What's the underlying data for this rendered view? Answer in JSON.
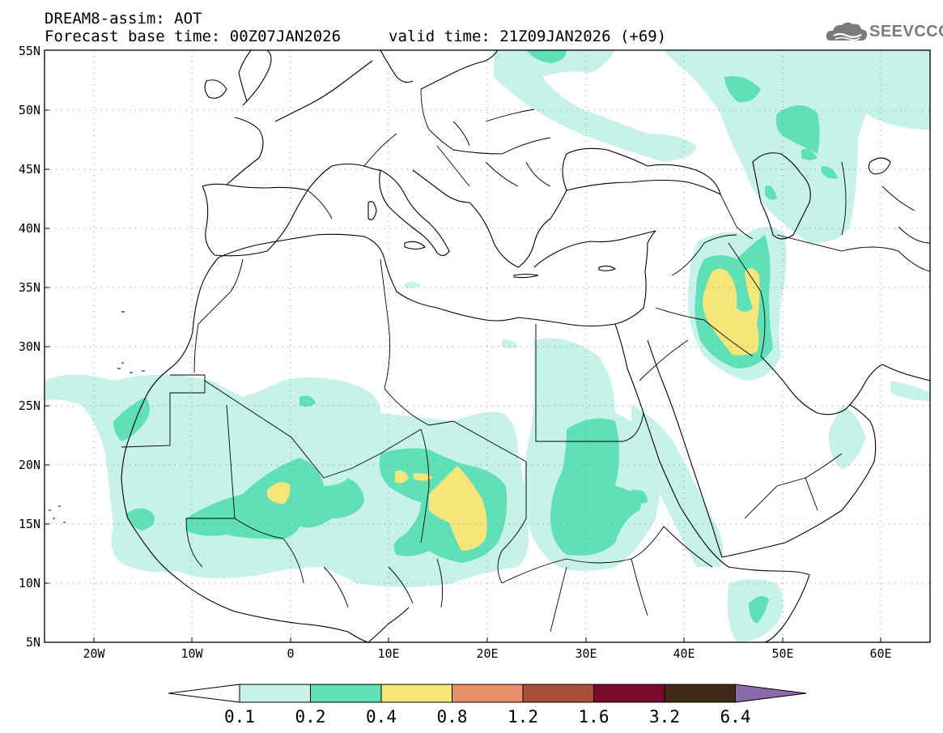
{
  "header": {
    "line1": "DREAM8-assim: AOT",
    "line2": "Forecast base time: 00Z07JAN2026",
    "valid": "valid time: 21Z09JAN2026 (+69)"
  },
  "logo": {
    "text": "SEEVCCC",
    "icon": "cloud-icon",
    "color": "#7a7a7a"
  },
  "map": {
    "lon_range": [
      -25,
      65
    ],
    "lat_range": [
      5,
      55
    ],
    "lon_ticks": [
      "20W",
      "10W",
      "0",
      "10E",
      "20E",
      "30E",
      "40E",
      "50E",
      "60E"
    ],
    "lat_ticks": [
      "5N",
      "10N",
      "15N",
      "20N",
      "25N",
      "30N",
      "35N",
      "40N",
      "45N",
      "50N",
      "55N"
    ],
    "gridlines": "dotted"
  },
  "colorbar": {
    "levels": [
      "0.1",
      "0.2",
      "0.4",
      "0.8",
      "1.2",
      "1.6",
      "3.2",
      "6.4"
    ],
    "colors": [
      "#c6f2ea",
      "#5fe0b6",
      "#f6e67a",
      "#e8906a",
      "#a8503c",
      "#7a0a2a",
      "#3e2a14",
      "#8a6aa8"
    ],
    "under_color": "#ffffff"
  }
}
